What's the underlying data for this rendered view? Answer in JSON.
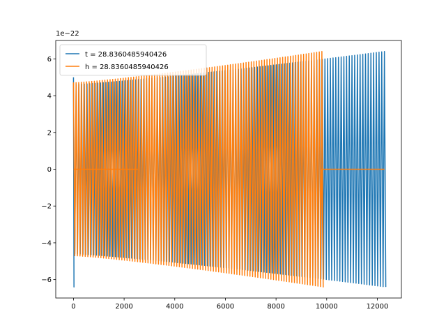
{
  "chart_data": {
    "type": "line",
    "title": "",
    "xlabel": "",
    "ylabel": "",
    "xlim": [
      -700,
      12950
    ],
    "ylim": [
      -7,
      7
    ],
    "y_offset_text": "1e−22",
    "xticks": [
      0,
      2000,
      4000,
      6000,
      8000,
      10000,
      12000
    ],
    "xtick_labels": [
      "0",
      "2000",
      "4000",
      "6000",
      "8000",
      "10000",
      "12000"
    ],
    "yticks": [
      -6,
      -4,
      -2,
      0,
      2,
      4,
      6
    ],
    "ytick_labels": [
      "−6",
      "−4",
      "−2",
      "0",
      "2",
      "4",
      "6"
    ],
    "grid": false,
    "legend_placement": "top-left",
    "series": [
      {
        "name": "t = 28.8360485940426",
        "color": "#1f77b4",
        "description_points": {
          "x_start": 0,
          "x_end": 12280,
          "amplitude_start": 4.6,
          "amplitude_end": 6.4,
          "initial_spike": [
            0,
            -6.4
          ],
          "cycles": 115
        }
      },
      {
        "name": "h = 28.8360485940426",
        "color": "#ff7f0e",
        "description_points": {
          "x_start": 0,
          "x_end": 9810,
          "amplitude_start": 4.7,
          "amplitude_end": 6.4,
          "flat_after": [
            9810,
            12280
          ],
          "initial_value": 4.3,
          "cycles": 95
        }
      }
    ]
  }
}
